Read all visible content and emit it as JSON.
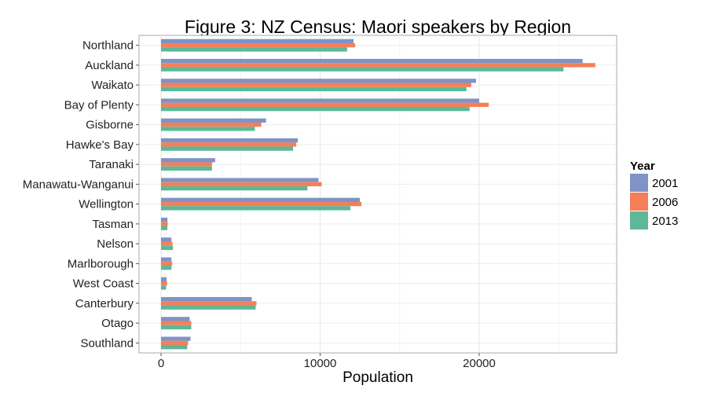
{
  "chart_data": {
    "type": "bar",
    "orientation": "horizontal",
    "title": "Figure 3: NZ Census: Maori speakers by Region",
    "xlabel": "Population",
    "ylabel": "",
    "xlim": [
      0,
      28000
    ],
    "xticks": [
      0,
      10000,
      20000
    ],
    "grid": true,
    "legend": {
      "title": "Year",
      "placement": "right"
    },
    "categories": [
      "Northland",
      "Auckland",
      "Waikato",
      "Bay of Plenty",
      "Gisborne",
      "Hawke's Bay",
      "Taranaki",
      "Manawatu-Wanganui",
      "Wellington",
      "Tasman",
      "Nelson",
      "Marlborough",
      "West Coast",
      "Canterbury",
      "Otago",
      "Southland"
    ],
    "series": [
      {
        "name": "2001",
        "color": "#7f93c6",
        "values": [
          12100,
          26500,
          19800,
          20000,
          6600,
          8600,
          3400,
          9900,
          12500,
          400,
          650,
          650,
          350,
          5700,
          1800,
          1850
        ]
      },
      {
        "name": "2006",
        "color": "#f47f59",
        "values": [
          12200,
          27300,
          19500,
          20600,
          6300,
          8500,
          3200,
          10100,
          12600,
          420,
          720,
          700,
          380,
          6000,
          1900,
          1700
        ]
      },
      {
        "name": "2013",
        "color": "#5cb896",
        "values": [
          11700,
          25300,
          19200,
          19400,
          5900,
          8300,
          3200,
          9200,
          11900,
          400,
          750,
          650,
          320,
          5950,
          1900,
          1650
        ]
      }
    ]
  }
}
